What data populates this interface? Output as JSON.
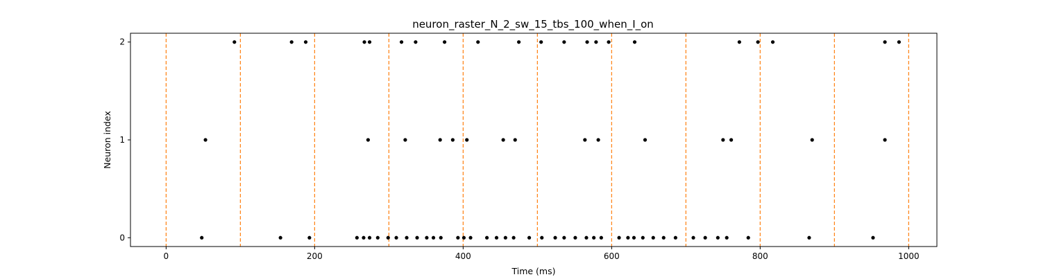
{
  "chart_data": {
    "type": "scatter",
    "title": "neuron_raster_N_2_sw_15_tbs_100_when_I_on",
    "xlabel": "Time (ms)",
    "ylabel": "Neuron index",
    "xlim": [
      -48,
      1038
    ],
    "ylim": [
      -0.09,
      2.09
    ],
    "xticks": [
      0,
      200,
      400,
      600,
      800,
      1000
    ],
    "yticks": [
      0,
      1,
      2
    ],
    "grid": false,
    "legend": "none",
    "marker_color": "#000000",
    "vline_color": "#ff7f0e",
    "vlines": [
      0,
      100,
      200,
      300,
      400,
      500,
      600,
      700,
      800,
      900,
      1000
    ],
    "series": [
      {
        "neuron": 0,
        "spikes": [
          48,
          154,
          193,
          257,
          266,
          274,
          285,
          299,
          310,
          324,
          338,
          351,
          360,
          370,
          393,
          401,
          410,
          432,
          445,
          457,
          468,
          489,
          506,
          524,
          536,
          551,
          566,
          576,
          586,
          610,
          622,
          630,
          642,
          656,
          670,
          686,
          710,
          726,
          743,
          755,
          784,
          866,
          952
        ]
      },
      {
        "neuron": 1,
        "spikes": [
          53,
          272,
          322,
          369,
          386,
          405,
          454,
          470,
          564,
          582,
          645,
          750,
          761,
          870,
          968
        ]
      },
      {
        "neuron": 2,
        "spikes": [
          92,
          169,
          188,
          267,
          274,
          317,
          336,
          375,
          420,
          475,
          505,
          536,
          567,
          579,
          596,
          631,
          772,
          797,
          817,
          968,
          987
        ]
      }
    ]
  }
}
